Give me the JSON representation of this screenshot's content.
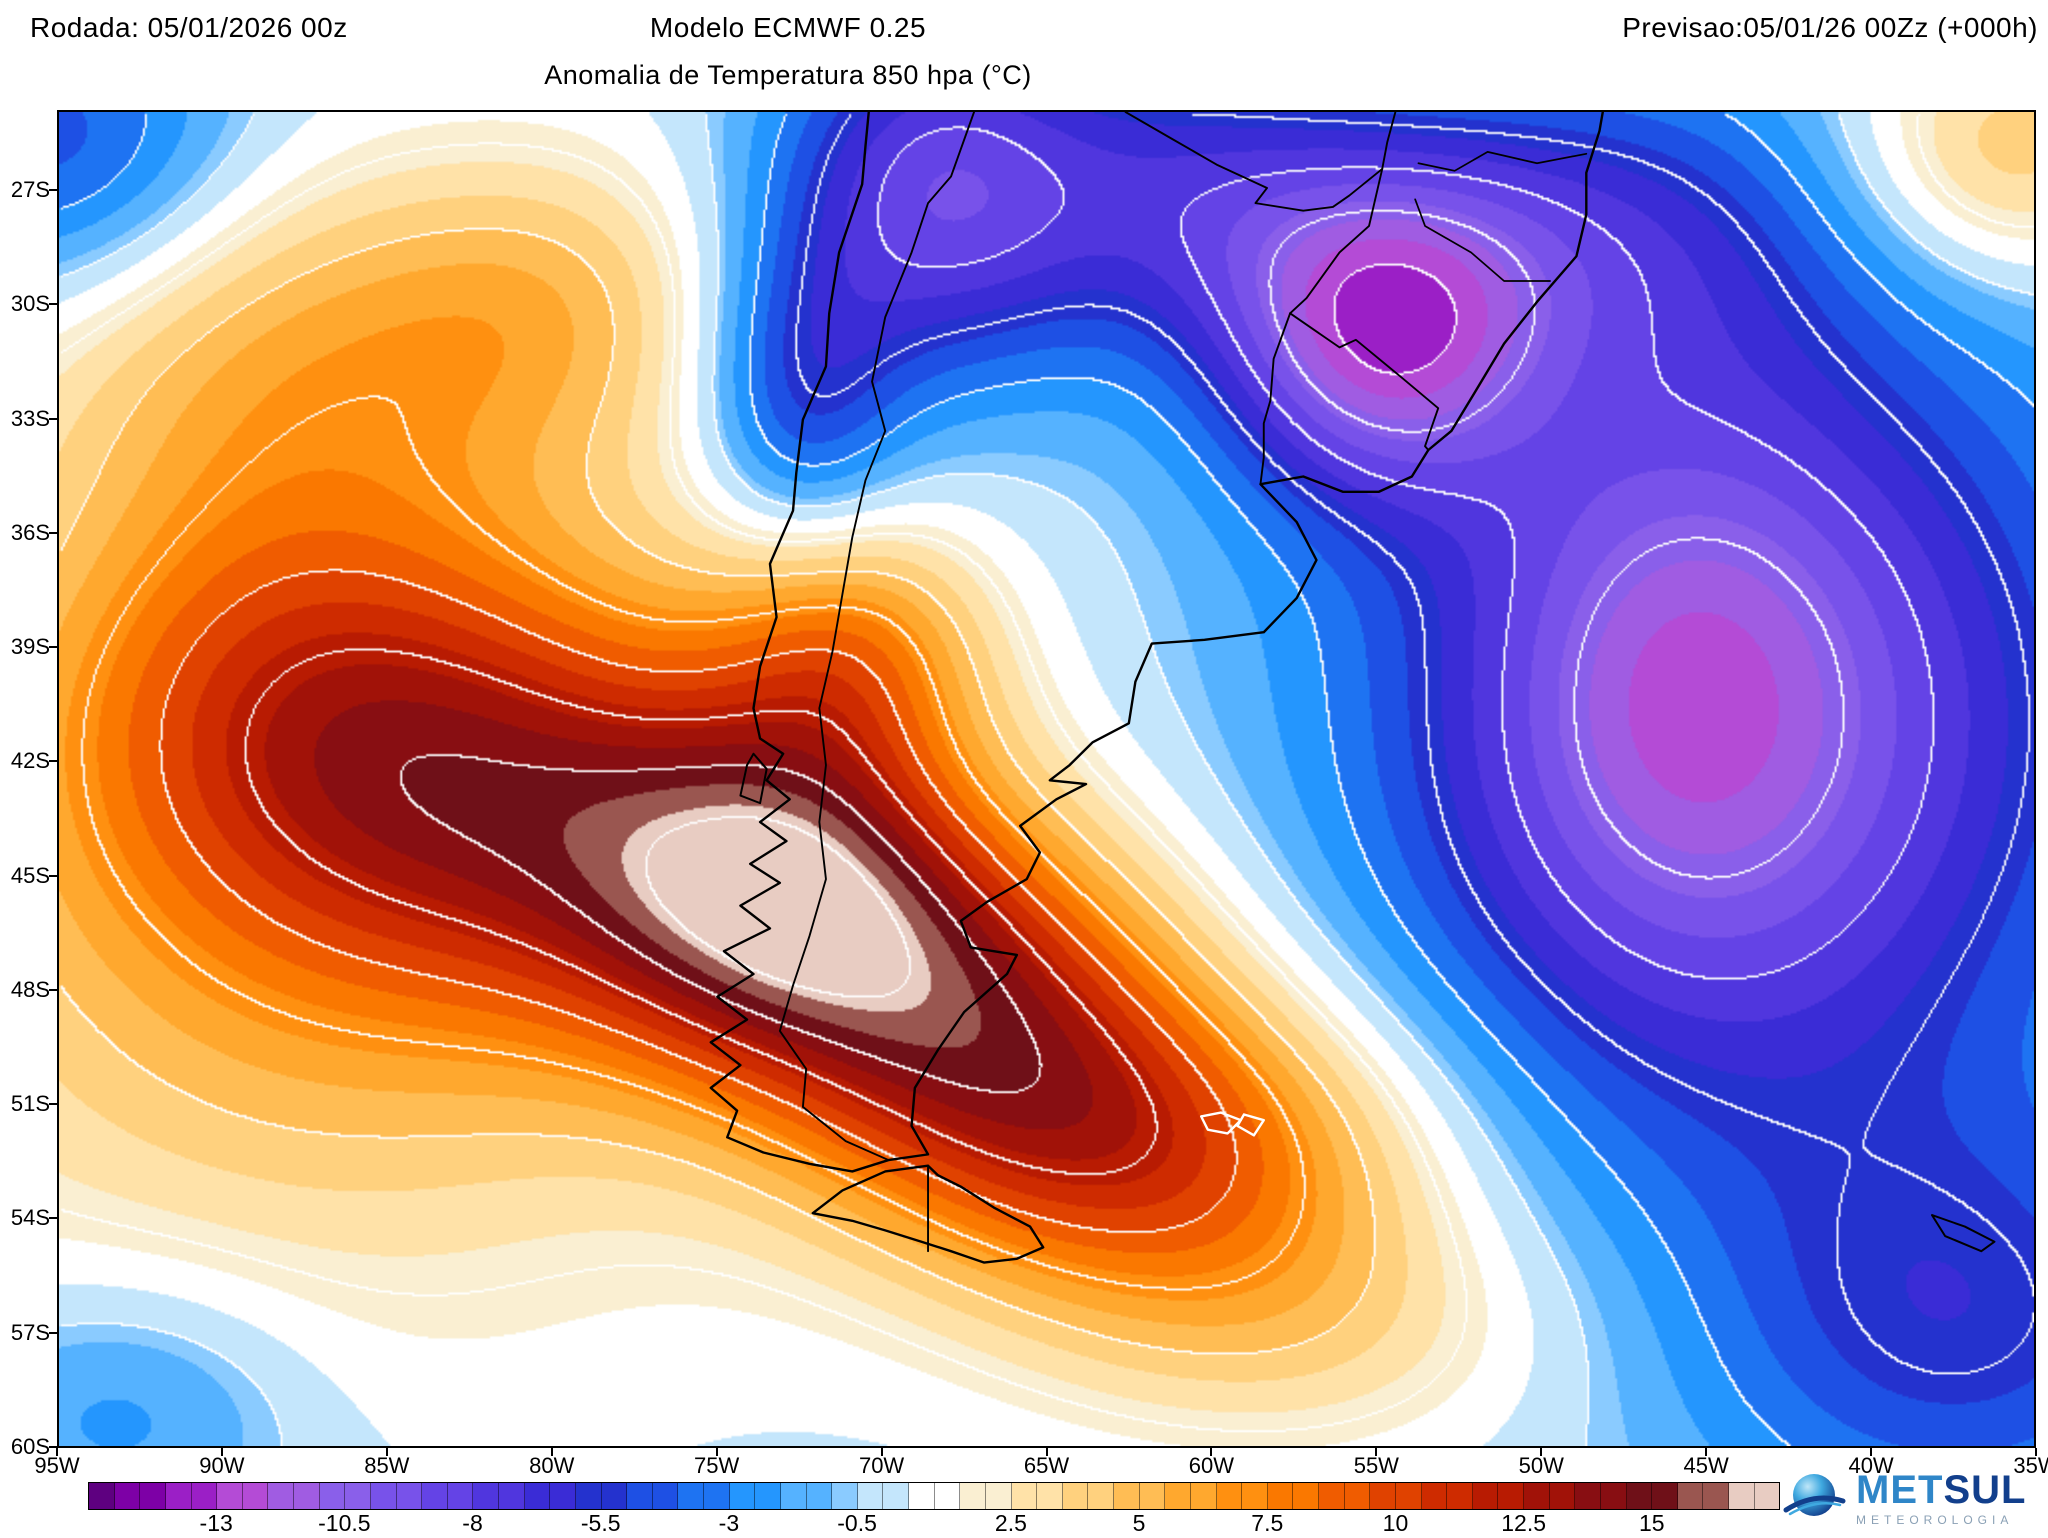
{
  "header": {
    "run": "Rodada: 05/01/2026 00z",
    "model": "Modelo ECMWF 0.25",
    "valid": "Previsao:05/01/26 00Zz (+000h)"
  },
  "map": {
    "title": "Anomalia de Temperatura 850 hpa (°C)",
    "lat_ticks": [
      "27S",
      "30S",
      "33S",
      "36S",
      "39S",
      "42S",
      "45S",
      "48S",
      "51S",
      "54S",
      "57S",
      "60S"
    ],
    "lon_ticks": [
      "95W",
      "90W",
      "85W",
      "80W",
      "75W",
      "70W",
      "65W",
      "60W",
      "55W",
      "50W",
      "45W",
      "40W",
      "35W"
    ]
  },
  "logo": {
    "brand_prefix": "MET",
    "brand_suffix": "SUL",
    "subtitle": "METEOROLOGIA",
    "brand_color": "#123f8c",
    "accent_color": "#2f86c8"
  },
  "chart_data": {
    "type": "heatmap",
    "title": "Anomalia de Temperatura 850 hpa (°C)",
    "units": "°C",
    "model": "ECMWF 0.25",
    "run": "05/01/2026 00z",
    "valid": "05/01/26 00Zz",
    "forecast_hour": "+000h",
    "extent": {
      "lon_min": -95,
      "lon_max": -35,
      "lat_min": -60.03,
      "lat_max": -24.9
    },
    "colorbar": {
      "vmin": -15.5,
      "vmax": 17.5,
      "step": 0.5,
      "tick_values": [
        -13,
        -10.5,
        -8,
        -5.5,
        -3,
        -0.5,
        2.5,
        5,
        7.5,
        10,
        12.5,
        15
      ],
      "palette": [
        {
          "upto": -15,
          "color": "#5E0080"
        },
        {
          "upto": -14,
          "color": "#7D00A6"
        },
        {
          "upto": -13,
          "color": "#9B1FC6"
        },
        {
          "upto": -12,
          "color": "#B44BD6"
        },
        {
          "upto": -11,
          "color": "#A05CE2"
        },
        {
          "upto": -10,
          "color": "#8A5FEA"
        },
        {
          "upto": -9,
          "color": "#7852EA"
        },
        {
          "upto": -8,
          "color": "#6443E6"
        },
        {
          "upto": -7,
          "color": "#5036DE"
        },
        {
          "upto": -6,
          "color": "#3A2CD6"
        },
        {
          "upto": -5,
          "color": "#2432CE"
        },
        {
          "upto": -4,
          "color": "#1E50E4"
        },
        {
          "upto": -3,
          "color": "#1E73F2"
        },
        {
          "upto": -2,
          "color": "#2496FE"
        },
        {
          "upto": -1,
          "color": "#55B2FF"
        },
        {
          "upto": -0.5,
          "color": "#8ACBFF"
        },
        {
          "upto": 0.5,
          "color": "#C4E6FC"
        },
        {
          "upto": 1.5,
          "color": "#FFFFFF"
        },
        {
          "upto": 2.5,
          "color": "#FAEFD2"
        },
        {
          "upto": 3.5,
          "color": "#FFE2A8"
        },
        {
          "upto": 4.5,
          "color": "#FFD17E"
        },
        {
          "upto": 5.5,
          "color": "#FFBD54"
        },
        {
          "upto": 6.5,
          "color": "#FFA82E"
        },
        {
          "upto": 7.5,
          "color": "#FF9010"
        },
        {
          "upto": 8.5,
          "color": "#FA7800"
        },
        {
          "upto": 9.5,
          "color": "#F05C00"
        },
        {
          "upto": 10.5,
          "color": "#E04200"
        },
        {
          "upto": 11.5,
          "color": "#CE2B00"
        },
        {
          "upto": 12.5,
          "color": "#B81B02"
        },
        {
          "upto": 13.5,
          "color": "#A11208"
        },
        {
          "upto": 14.5,
          "color": "#880E12"
        },
        {
          "upto": 15.5,
          "color": "#6F1018"
        },
        {
          "upto": 16.5,
          "color": "#9A5650"
        },
        {
          "upto": 999,
          "color": "#E8CCC2"
        }
      ]
    },
    "anomaly_centers": [
      {
        "lon": -88,
        "lat": -40,
        "peak": 7,
        "slon": 6,
        "slat": 4.5
      },
      {
        "lon": -80,
        "lat": -43,
        "peak": 7,
        "slon": 6,
        "slat": 4
      },
      {
        "lon": -73,
        "lat": -45.5,
        "peak": 11,
        "slon": 4.5,
        "slat": 3.2
      },
      {
        "lon": -67,
        "lat": -49,
        "peak": 10,
        "slon": 5,
        "slat": 3.5
      },
      {
        "lon": -61,
        "lat": -52.5,
        "peak": 8,
        "slon": 5.5,
        "slat": 3
      },
      {
        "lon": -87,
        "lat": -47,
        "peak": 5,
        "slon": 10,
        "slat": 7
      },
      {
        "lon": -88,
        "lat": -31,
        "peak": 4.5,
        "slon": 6,
        "slat": 3.5
      },
      {
        "lon": -80,
        "lat": -30,
        "peak": 3.5,
        "slon": 4,
        "slat": 3
      },
      {
        "lon": -36,
        "lat": -26,
        "peak": 5,
        "slon": 3.5,
        "slat": 2.5
      },
      {
        "lon": -57,
        "lat": -57,
        "peak": 3,
        "slon": 6,
        "slat": 2.5
      },
      {
        "lon": -71,
        "lat": -39,
        "peak": 6,
        "slon": 3,
        "slat": 2.5
      },
      {
        "lon": -44,
        "lat": -41,
        "peak": -10,
        "slon": 8,
        "slat": 8
      },
      {
        "lon": -46,
        "lat": -40,
        "peak": -3,
        "slon": 4,
        "slat": 5
      },
      {
        "lon": -55,
        "lat": -31,
        "peak": -9,
        "slon": 3.5,
        "slat": 3
      },
      {
        "lon": -68.5,
        "lat": -27,
        "peak": -8,
        "slon": 3.5,
        "slat": 3.5
      },
      {
        "lon": -72.5,
        "lat": -32.5,
        "peak": -5,
        "slon": 2.2,
        "slat": 3
      },
      {
        "lon": -95,
        "lat": -26,
        "peak": -5,
        "slon": 4,
        "slat": 3
      },
      {
        "lon": -37,
        "lat": -57,
        "peak": -5,
        "slon": 6,
        "slat": 4
      },
      {
        "lon": -50,
        "lat": -28,
        "peak": -5,
        "slon": 6,
        "slat": 3
      },
      {
        "lon": -61,
        "lat": -27,
        "peak": -5,
        "slon": 4,
        "slat": 3
      },
      {
        "lon": -93,
        "lat": -59,
        "peak": -3,
        "slon": 4,
        "slat": 2.5
      }
    ],
    "notable_features": [
      "Extreme warm anomaly (>+15°C, pale core) over Patagonia near 72W 45S",
      "Warm ridge (+5 to +12°C) extending northwest over the southeast Pacific",
      "Cold anomaly (-8 to -13°C) over the southwest Atlantic",
      "Purple cold pocket over Rio Grande do Sul / Uruguay near 55W 31S",
      "Cold trough over northern Chile and NW Argentina near 68W 27S"
    ]
  }
}
